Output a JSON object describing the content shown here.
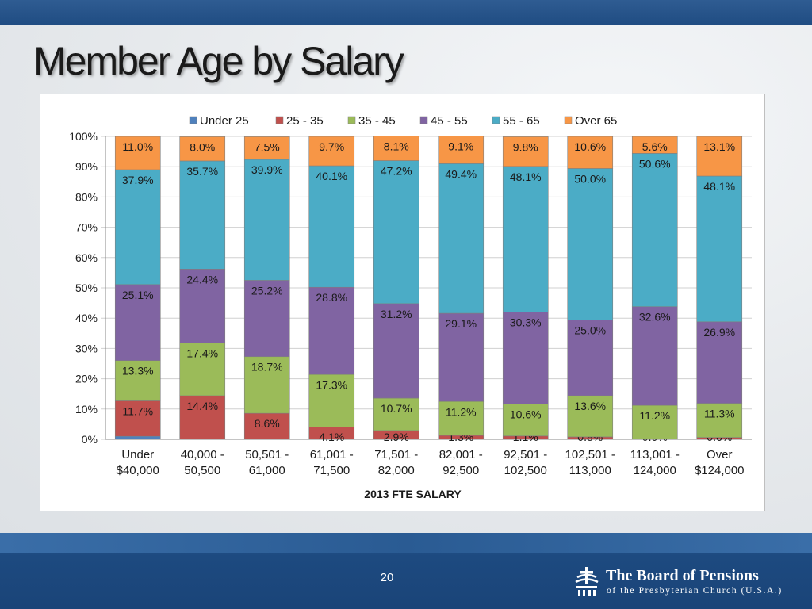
{
  "slide": {
    "title": "Member Age by Salary",
    "page_number": "20"
  },
  "brand": {
    "name": "The Board of Pensions",
    "subtitle": "of the Presbyterian Church (U.S.A.)"
  },
  "colors": {
    "title": "#1a1a1a",
    "footer": "#1d4a80"
  },
  "chart_data": {
    "type": "bar",
    "stacked": true,
    "percent_stacked": true,
    "title": "",
    "xlabel": "2013 FTE SALARY",
    "ylabel": "",
    "ylim": [
      0,
      100
    ],
    "y_ticks": [
      "0%",
      "10%",
      "20%",
      "30%",
      "40%",
      "50%",
      "60%",
      "70%",
      "80%",
      "90%",
      "100%"
    ],
    "legend_position": "top",
    "categories": [
      [
        "Under",
        "$40,000"
      ],
      [
        "40,000 -",
        "50,500"
      ],
      [
        "50,501 -",
        "61,000"
      ],
      [
        "61,001 -",
        "71,500"
      ],
      [
        "71,501 -",
        "82,000"
      ],
      [
        "82,001 -",
        "92,500"
      ],
      [
        "92,501 -",
        "102,500"
      ],
      [
        "102,501 -",
        "113,000"
      ],
      [
        "113,001 -",
        "124,000"
      ],
      [
        "Over",
        "$124,000"
      ]
    ],
    "series": [
      {
        "name": "Under 25",
        "color": "#4f81bd",
        "values": [
          1.0,
          0,
          0,
          0,
          0,
          0,
          0,
          0,
          0,
          0
        ],
        "labels": [
          "",
          "",
          "",
          "",
          "",
          "",
          "",
          "",
          "",
          ""
        ]
      },
      {
        "name": "25 - 35",
        "color": "#c0504d",
        "values": [
          11.7,
          14.4,
          8.6,
          4.1,
          2.9,
          1.3,
          1.1,
          0.8,
          0.0,
          0.6
        ],
        "labels": [
          "11.7%",
          "14.4%",
          "8.6%",
          "4.1%",
          "2.9%",
          "1.3%",
          "1.1%",
          "0.8%",
          "0.0%",
          "0.6%"
        ]
      },
      {
        "name": "35 - 45",
        "color": "#9bbb59",
        "values": [
          13.3,
          17.4,
          18.7,
          17.3,
          10.7,
          11.2,
          10.6,
          13.6,
          11.2,
          11.3
        ],
        "labels": [
          "13.3%",
          "17.4%",
          "18.7%",
          "17.3%",
          "10.7%",
          "11.2%",
          "10.6%",
          "13.6%",
          "11.2%",
          "11.3%"
        ]
      },
      {
        "name": "45 - 55",
        "color": "#8064a2",
        "values": [
          25.1,
          24.4,
          25.2,
          28.8,
          31.2,
          29.1,
          30.3,
          25.0,
          32.6,
          26.9
        ],
        "labels": [
          "25.1%",
          "24.4%",
          "25.2%",
          "28.8%",
          "31.2%",
          "29.1%",
          "30.3%",
          "25.0%",
          "32.6%",
          "26.9%"
        ]
      },
      {
        "name": "55 - 65",
        "color": "#4bacc6",
        "values": [
          37.9,
          35.7,
          39.9,
          40.1,
          47.2,
          49.4,
          48.1,
          50.0,
          50.6,
          48.1
        ],
        "labels": [
          "37.9%",
          "35.7%",
          "39.9%",
          "40.1%",
          "47.2%",
          "49.4%",
          "48.1%",
          "50.0%",
          "50.6%",
          "48.1%"
        ]
      },
      {
        "name": "Over 65",
        "color": "#f79646",
        "values": [
          11.0,
          8.0,
          7.5,
          9.7,
          8.1,
          9.1,
          9.8,
          10.6,
          5.6,
          13.1
        ],
        "labels": [
          "11.0%",
          "8.0%",
          "7.5%",
          "9.7%",
          "8.1%",
          "9.1%",
          "9.8%",
          "10.6%",
          "5.6%",
          "13.1%"
        ]
      }
    ]
  }
}
